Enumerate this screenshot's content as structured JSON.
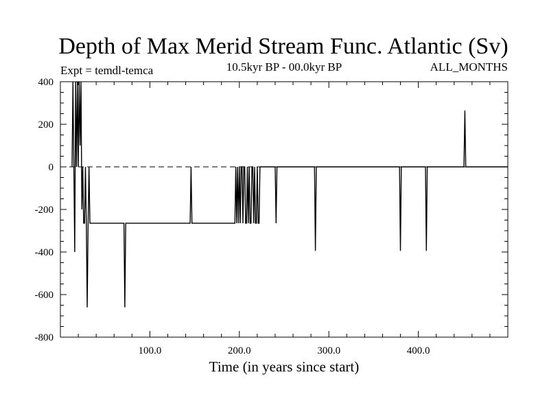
{
  "chart_data": {
    "type": "line",
    "title": "Depth of Max Merid Stream Func. Atlantic (Sv)",
    "subtitle_left": "Expt = temdl-temca",
    "subtitle_center": "10.5kyr BP - 00.0kyr BP",
    "subtitle_right": "ALL_MONTHS",
    "xlabel": "Time (in years since start)",
    "ylabel": "",
    "xlim": [
      0,
      500
    ],
    "ylim": [
      -800,
      400
    ],
    "x_ticks": [
      100,
      200,
      300,
      400
    ],
    "x_tick_labels": [
      "100.0",
      "200.0",
      "300.0",
      "400.0"
    ],
    "y_ticks": [
      400,
      200,
      0,
      -200,
      -400,
      -600,
      -800
    ],
    "y_tick_labels": [
      "400",
      "200",
      "0",
      "-200",
      "-400",
      "-600",
      "-800"
    ],
    "zero_line": "dashed",
    "grid": false,
    "series": [
      {
        "x": [
          13,
          14,
          15,
          16,
          17,
          18,
          19,
          20,
          21,
          22,
          23,
          24,
          25,
          26,
          27,
          28,
          29,
          30,
          31,
          32,
          33,
          34,
          35,
          36,
          70,
          71,
          72,
          73,
          74,
          145,
          146,
          147,
          148,
          195,
          196,
          197,
          198,
          199,
          200,
          201,
          202,
          203,
          204,
          205,
          206,
          207,
          208,
          209,
          210,
          211,
          212,
          213,
          214,
          215,
          216,
          217,
          218,
          219,
          220,
          221,
          222,
          223,
          240,
          241,
          242,
          243,
          284,
          285,
          286,
          287,
          379,
          380,
          381,
          382,
          408,
          409,
          410,
          411,
          451,
          452,
          453,
          454,
          500
        ],
        "y": [
          0,
          400,
          0,
          -400,
          400,
          0,
          400,
          0,
          400,
          100,
          400,
          -200,
          0,
          -265,
          -265,
          0,
          -265,
          -660,
          -265,
          0,
          -265,
          -265,
          -265,
          -265,
          -265,
          -265,
          -660,
          -265,
          -265,
          -265,
          0,
          -265,
          -265,
          -265,
          0,
          -265,
          0,
          -265,
          0,
          -265,
          0,
          0,
          -265,
          0,
          0,
          -265,
          -265,
          0,
          -265,
          0,
          -265,
          -265,
          0,
          0,
          -265,
          0,
          -265,
          -265,
          0,
          -265,
          -265,
          0,
          0,
          -265,
          0,
          0,
          0,
          -395,
          0,
          0,
          0,
          -395,
          0,
          0,
          0,
          -395,
          0,
          0,
          0,
          265,
          0,
          0,
          0
        ]
      }
    ]
  }
}
